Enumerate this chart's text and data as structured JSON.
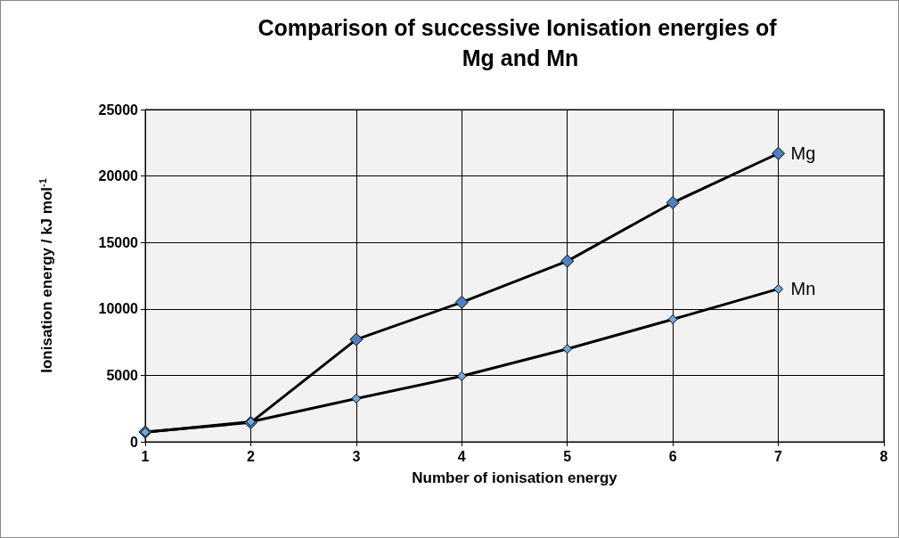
{
  "chart_data": {
    "type": "line",
    "title": "Comparison of successive Ionisation energies of Mg and Mn",
    "xlabel": "Number of ionisation energy",
    "ylabel": "Ionisation energy / kJ mol$^{-1}$",
    "series": [
      {
        "name": "Mg",
        "color": "#4f81bd",
        "x": [
          1,
          2,
          3,
          4,
          5,
          6,
          7
        ],
        "values": [
          740,
          1450,
          7700,
          10500,
          13600,
          18000,
          21700
        ]
      },
      {
        "name": "Mn",
        "color": "#6fa8dc",
        "x": [
          1,
          2,
          3,
          4,
          5,
          6,
          7
        ],
        "values": [
          720,
          1510,
          3250,
          4940,
          6990,
          9220,
          11500
        ]
      }
    ],
    "xlim": [
      1,
      8
    ],
    "xticks": [
      1,
      2,
      3,
      4,
      5,
      6,
      7,
      8
    ],
    "ylim": [
      0,
      25000
    ],
    "yticks": [
      0,
      5000,
      10000,
      15000,
      20000,
      25000
    ],
    "grid": true,
    "legend": false,
    "marker": "diamond",
    "line_style": "solid"
  }
}
